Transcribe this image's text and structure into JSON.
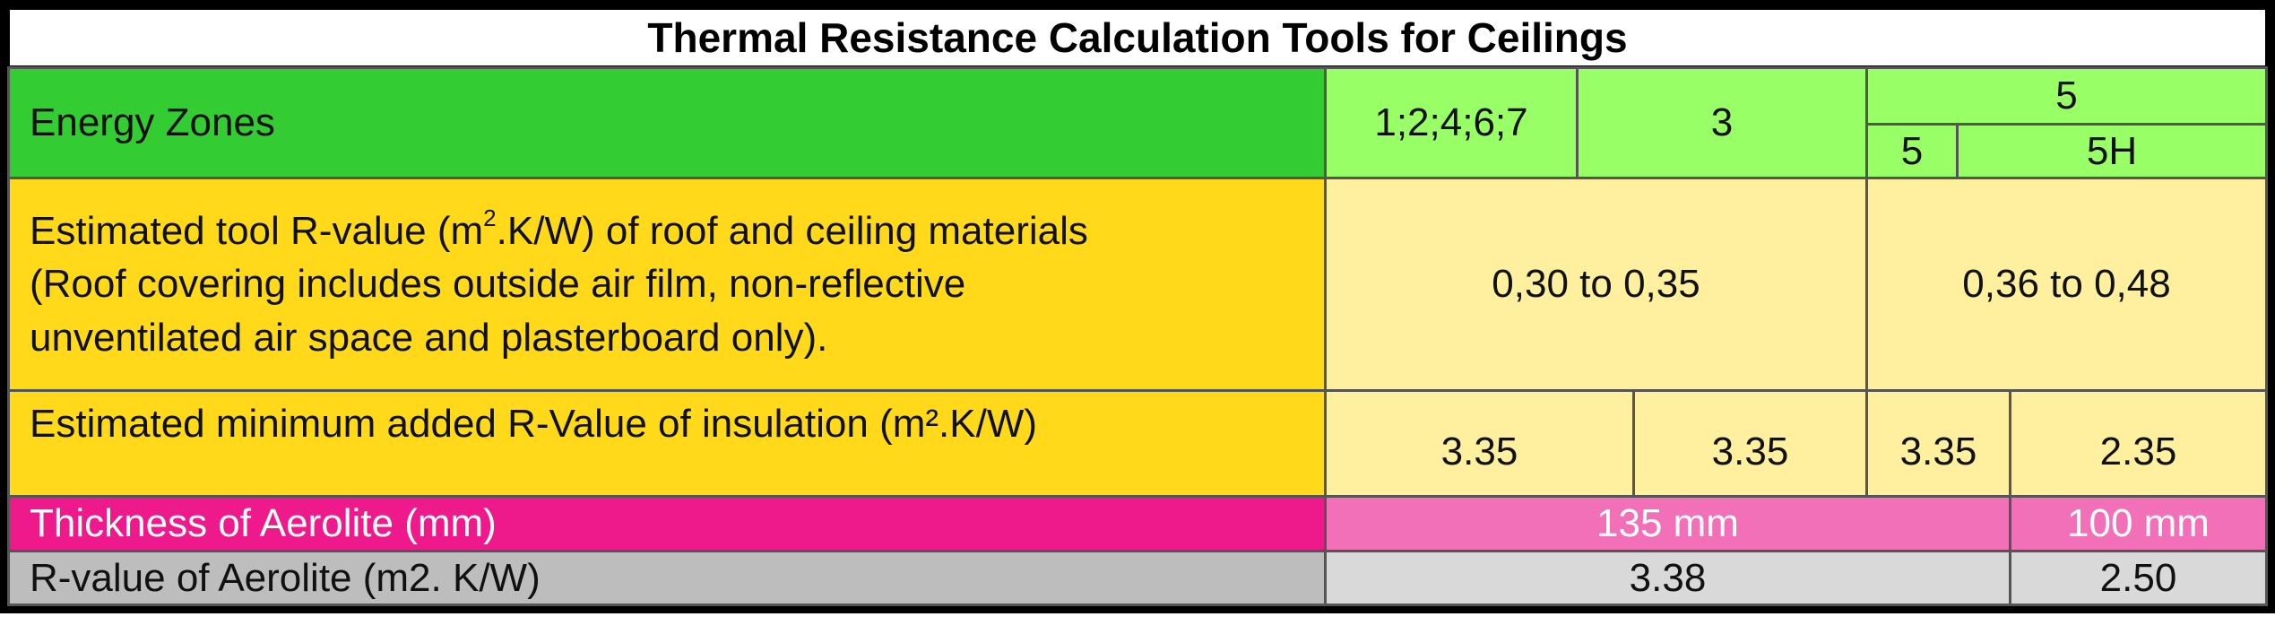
{
  "title": "Thermal Resistance Calculation Tools for Ceilings",
  "rows": {
    "energy_zones": {
      "label": "Energy Zones",
      "zone_1": "1;2;4;6;7",
      "zone_3": "3",
      "zone_5_group": "5",
      "zone_5": "5",
      "zone_5h": "5H"
    },
    "tool_r_value": {
      "label_part1": "Estimated tool R-value (m",
      "label_sup": "2",
      "label_part2": ".K/W) of roof and ceiling materials",
      "label_line2": "(Roof covering includes outside air film, non-reflective",
      "label_line3": "unventilated air space and plasterboard only).",
      "value_a": "0,30 to 0,35",
      "value_b": "0,36 to 0,48"
    },
    "min_added": {
      "label": "Estimated minimum added R-Value of insulation (m².K/W)",
      "v1": "3.35",
      "v2": "3.35",
      "v3": "3.35",
      "v4": "2.35"
    },
    "thickness": {
      "label": "Thickness of Aerolite (mm)",
      "v1": "135 mm",
      "v2": "100 mm"
    },
    "r_value": {
      "label": "R-value of Aerolite (m2. K/W)",
      "v1": "3.38",
      "v2": "2.50"
    }
  }
}
